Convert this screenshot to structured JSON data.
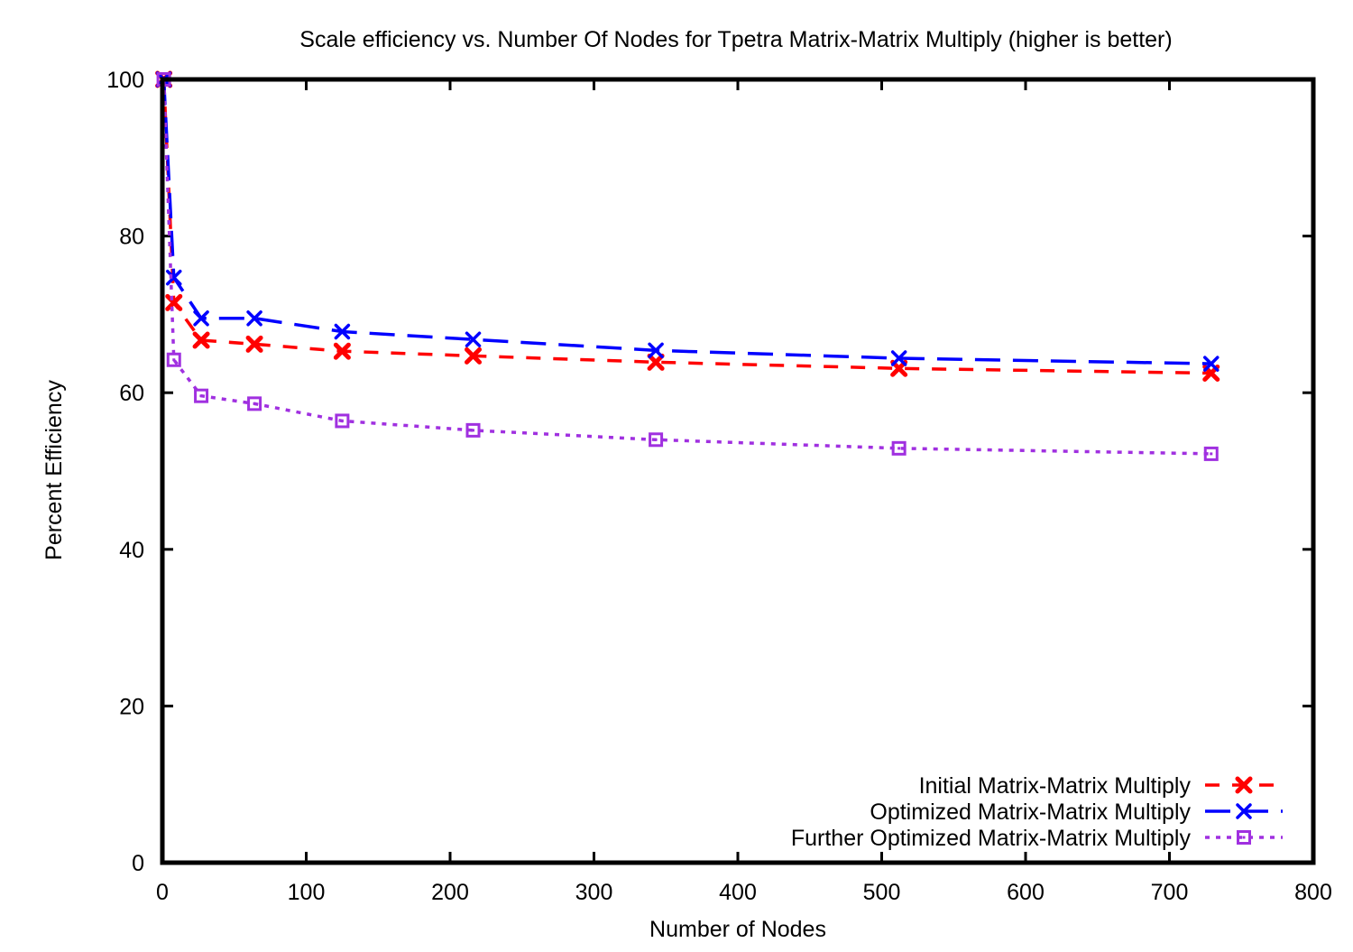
{
  "chart_data": {
    "type": "line",
    "title": "Scale efficiency vs. Number Of Nodes for Tpetra Matrix-Matrix Multiply (higher is better)",
    "xlabel": "Number of Nodes",
    "ylabel": "Percent Efficiency",
    "xlim": [
      0,
      800
    ],
    "ylim": [
      0,
      100
    ],
    "xticks": [
      "0",
      "100",
      "200",
      "300",
      "400",
      "500",
      "600",
      "700",
      "800"
    ],
    "yticks": [
      "0",
      "20",
      "40",
      "60",
      "80",
      "100"
    ],
    "x": [
      1,
      8,
      27,
      64,
      125,
      216,
      343,
      512,
      729
    ],
    "grid": false,
    "legend_position": "bottom-right",
    "series": [
      {
        "name": "Initial Matrix-Matrix Multiply",
        "color": "#ff0000",
        "marker": "filled-x",
        "line": "dashed",
        "values": [
          100,
          71.5,
          66.7,
          66.2,
          65.3,
          64.7,
          63.9,
          63.1,
          62.5
        ]
      },
      {
        "name": "Optimized Matrix-Matrix Multiply",
        "color": "#0000ff",
        "marker": "x",
        "line": "long-dashed",
        "values": [
          100,
          74.7,
          69.5,
          69.5,
          67.8,
          66.8,
          65.4,
          64.4,
          63.7
        ]
      },
      {
        "name": "Further Optimized Matrix-Matrix Multiply",
        "color": "#a030e0",
        "marker": "open-square",
        "line": "dotted",
        "values": [
          100,
          64.2,
          59.6,
          58.6,
          56.4,
          55.2,
          54.0,
          52.9,
          52.2
        ]
      }
    ]
  }
}
